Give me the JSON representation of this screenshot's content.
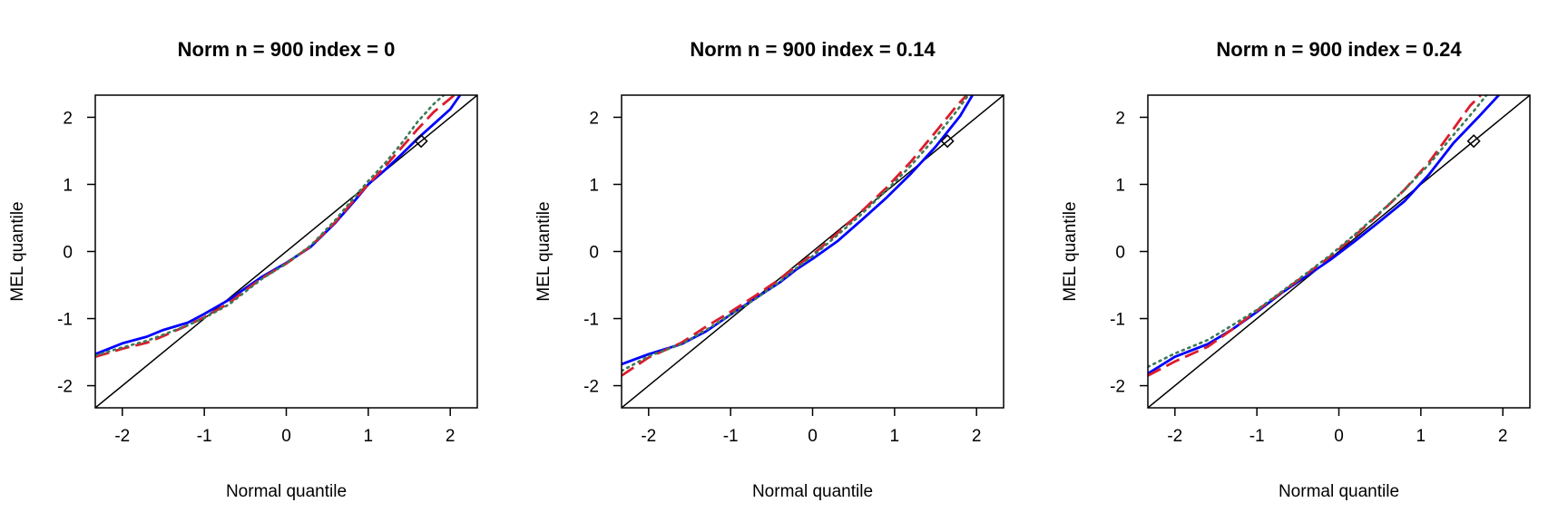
{
  "colors": {
    "blue": "#0000FF",
    "red": "#DD1C2C",
    "green": "#3B7A57",
    "black": "#000000"
  },
  "chart_data": [
    {
      "type": "line",
      "title": "Norm n = 900 index = 0",
      "xlabel": "Normal quantile",
      "ylabel": "MEL quantile",
      "xlim": [
        -2.33,
        2.33
      ],
      "ylim": [
        -2.33,
        2.33
      ],
      "xticks": [
        -2,
        -1,
        0,
        1,
        2
      ],
      "yticks": [
        -2,
        -1,
        0,
        1,
        2
      ],
      "grid": false,
      "reference_line": "y = x",
      "marker": {
        "x": 1.645,
        "y": 1.645,
        "shape": "diamond"
      },
      "series": [
        {
          "color": "blue",
          "style": "solid",
          "x": [
            -2.33,
            -2.0,
            -1.7,
            -1.5,
            -1.2,
            -1.0,
            -0.7,
            -0.5,
            -0.3,
            0,
            0.3,
            0.6,
            0.85,
            1.0,
            1.2,
            1.4,
            1.6,
            1.8,
            2.0,
            2.12
          ],
          "y": [
            -1.53,
            -1.37,
            -1.27,
            -1.17,
            -1.06,
            -0.93,
            -0.72,
            -0.55,
            -0.38,
            -0.17,
            0.07,
            0.43,
            0.78,
            1.0,
            1.21,
            1.44,
            1.68,
            1.9,
            2.12,
            2.33
          ]
        },
        {
          "color": "red",
          "style": "dashed",
          "x": [
            -2.33,
            -2.0,
            -1.7,
            -1.5,
            -1.2,
            -1.0,
            -0.7,
            -0.5,
            -0.3,
            0,
            0.3,
            0.6,
            0.85,
            1.0,
            1.2,
            1.4,
            1.6,
            1.8,
            2.0,
            2.05
          ],
          "y": [
            -1.57,
            -1.45,
            -1.36,
            -1.26,
            -1.1,
            -0.98,
            -0.77,
            -0.58,
            -0.4,
            -0.18,
            0.08,
            0.44,
            0.8,
            1.0,
            1.26,
            1.54,
            1.82,
            2.08,
            2.28,
            2.33
          ]
        },
        {
          "color": "green",
          "style": "dotted",
          "x": [
            -2.33,
            -2.0,
            -1.7,
            -1.5,
            -1.2,
            -1.0,
            -0.7,
            -0.5,
            -0.3,
            0,
            0.3,
            0.6,
            0.85,
            1.0,
            1.2,
            1.4,
            1.6,
            1.8,
            1.92
          ],
          "y": [
            -1.55,
            -1.43,
            -1.33,
            -1.24,
            -1.1,
            -0.99,
            -0.79,
            -0.6,
            -0.41,
            -0.18,
            0.09,
            0.47,
            0.84,
            1.05,
            1.31,
            1.6,
            1.93,
            2.2,
            2.33
          ]
        }
      ]
    },
    {
      "type": "line",
      "title": "Norm n = 900 index = 0.14",
      "xlabel": "Normal quantile",
      "ylabel": "MEL quantile",
      "xlim": [
        -2.33,
        2.33
      ],
      "ylim": [
        -2.33,
        2.33
      ],
      "xticks": [
        -2,
        -1,
        0,
        1,
        2
      ],
      "yticks": [
        -2,
        -1,
        0,
        1,
        2
      ],
      "grid": false,
      "reference_line": "y = x",
      "marker": {
        "x": 1.645,
        "y": 1.645,
        "shape": "diamond"
      },
      "series": [
        {
          "color": "blue",
          "style": "solid",
          "x": [
            -2.33,
            -2.0,
            -1.6,
            -1.3,
            -1.0,
            -0.7,
            -0.4,
            -0.2,
            0,
            0.3,
            0.6,
            0.9,
            1.2,
            1.5,
            1.8,
            1.95
          ],
          "y": [
            -1.68,
            -1.53,
            -1.38,
            -1.19,
            -0.94,
            -0.7,
            -0.46,
            -0.27,
            -0.11,
            0.15,
            0.47,
            0.8,
            1.16,
            1.56,
            2.02,
            2.33
          ]
        },
        {
          "color": "red",
          "style": "dashed",
          "x": [
            -2.33,
            -2.0,
            -1.6,
            -1.3,
            -1.0,
            -0.7,
            -0.4,
            -0.2,
            0,
            0.3,
            0.6,
            0.9,
            1.2,
            1.5,
            1.75,
            1.88
          ],
          "y": [
            -1.85,
            -1.58,
            -1.36,
            -1.12,
            -0.9,
            -0.66,
            -0.41,
            -0.22,
            -0.05,
            0.27,
            0.6,
            0.95,
            1.34,
            1.78,
            2.16,
            2.33
          ]
        },
        {
          "color": "green",
          "style": "dotted",
          "x": [
            -2.33,
            -2.0,
            -1.6,
            -1.3,
            -1.0,
            -0.7,
            -0.4,
            -0.2,
            0,
            0.3,
            0.6,
            0.9,
            1.2,
            1.5,
            1.75,
            1.9
          ],
          "y": [
            -1.78,
            -1.56,
            -1.38,
            -1.17,
            -0.94,
            -0.71,
            -0.45,
            -0.25,
            -0.07,
            0.24,
            0.56,
            0.91,
            1.28,
            1.7,
            2.08,
            2.33
          ]
        }
      ]
    },
    {
      "type": "line",
      "title": "Norm n = 900 index = 0.24",
      "xlabel": "Normal quantile",
      "ylabel": "MEL quantile",
      "xlim": [
        -2.33,
        2.33
      ],
      "ylim": [
        -2.33,
        2.33
      ],
      "xticks": [
        -2,
        -1,
        0,
        1,
        2
      ],
      "yticks": [
        -2,
        -1,
        0,
        1,
        2
      ],
      "grid": false,
      "reference_line": "y = x",
      "marker": {
        "x": 1.645,
        "y": 1.645,
        "shape": "diamond"
      },
      "series": [
        {
          "color": "blue",
          "style": "solid",
          "x": [
            -2.33,
            -2.0,
            -1.6,
            -1.3,
            -1.0,
            -0.7,
            -0.4,
            -0.1,
            0.2,
            0.5,
            0.8,
            1.1,
            1.4,
            1.7,
            1.95
          ],
          "y": [
            -1.82,
            -1.57,
            -1.38,
            -1.16,
            -0.9,
            -0.62,
            -0.37,
            -0.12,
            0.16,
            0.45,
            0.75,
            1.15,
            1.62,
            2.0,
            2.33
          ]
        },
        {
          "color": "red",
          "style": "dashed",
          "x": [
            -2.33,
            -2.0,
            -1.6,
            -1.3,
            -1.0,
            -0.7,
            -0.4,
            -0.1,
            0.2,
            0.5,
            0.8,
            1.1,
            1.4,
            1.6,
            1.73
          ],
          "y": [
            -1.85,
            -1.64,
            -1.42,
            -1.16,
            -0.88,
            -0.61,
            -0.34,
            -0.07,
            0.24,
            0.57,
            0.92,
            1.33,
            1.83,
            2.17,
            2.33
          ]
        },
        {
          "color": "green",
          "style": "dotted",
          "x": [
            -2.33,
            -2.0,
            -1.6,
            -1.3,
            -1.0,
            -0.7,
            -0.4,
            -0.1,
            0.2,
            0.5,
            0.8,
            1.1,
            1.4,
            1.65,
            1.8
          ],
          "y": [
            -1.72,
            -1.52,
            -1.32,
            -1.1,
            -0.87,
            -0.6,
            -0.33,
            -0.05,
            0.26,
            0.58,
            0.92,
            1.3,
            1.74,
            2.1,
            2.33
          ]
        }
      ]
    }
  ]
}
